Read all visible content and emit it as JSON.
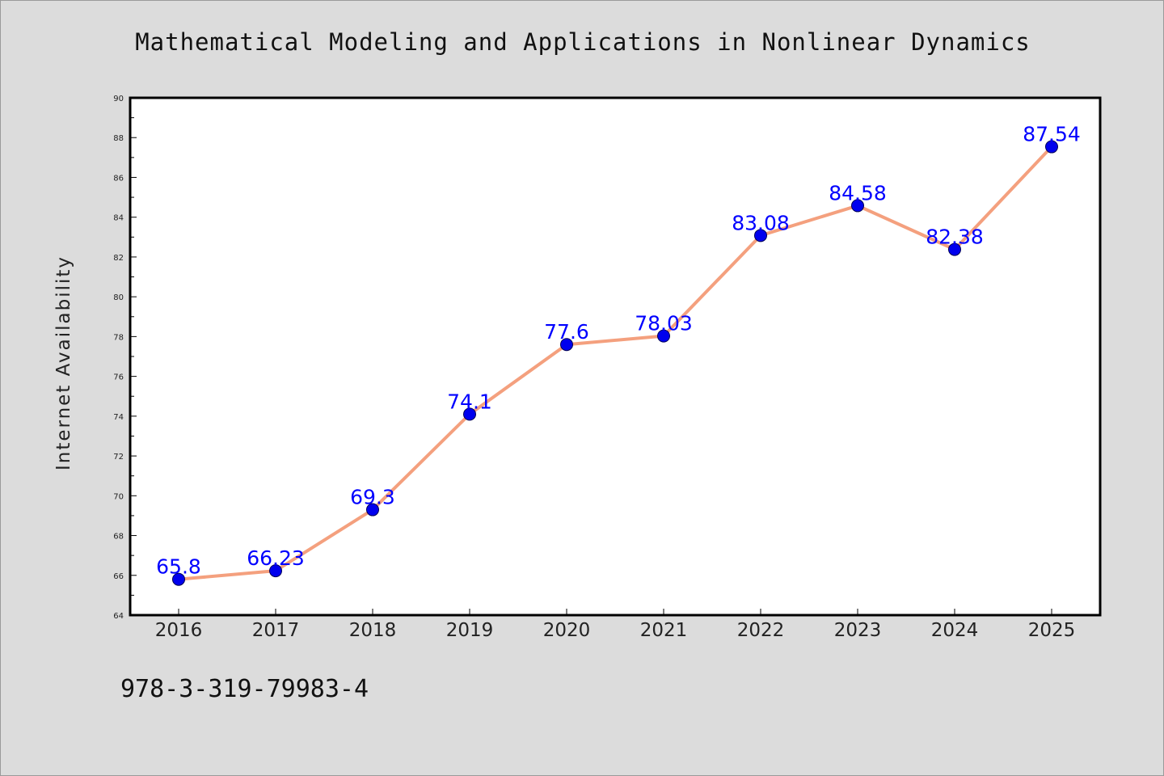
{
  "chart_data": {
    "type": "line",
    "title": "Mathematical Modeling and Applications in Nonlinear Dynamics",
    "ylabel": "Internet Availability",
    "xlabel": "",
    "x": [
      "2016",
      "2017",
      "2018",
      "2019",
      "2020",
      "2021",
      "2022",
      "2023",
      "2024",
      "2025"
    ],
    "series": [
      {
        "values": [
          65.8,
          66.23,
          69.3,
          74.1,
          77.6,
          78.03,
          83.08,
          84.58,
          82.38,
          87.54
        ],
        "labels": [
          "65.8",
          "66.23",
          "69.3",
          "74.1",
          "77.6",
          "78.03",
          "83.08",
          "84.58",
          "82.38",
          "87.54"
        ]
      }
    ],
    "ylim": [
      64,
      90
    ],
    "yticks": [
      "64",
      "66",
      "68",
      "70",
      "72",
      "74",
      "76",
      "78",
      "80",
      "82",
      "84",
      "86",
      "88",
      "90"
    ],
    "grid": false,
    "legend": "none",
    "colors": {
      "line": "#f4a07e",
      "marker": "#0000ee",
      "label": "#0000ff",
      "background": "#dcdcdc",
      "plot_background": "#ffffff"
    }
  },
  "footer": {
    "isbn": "978-3-319-79983-4"
  }
}
